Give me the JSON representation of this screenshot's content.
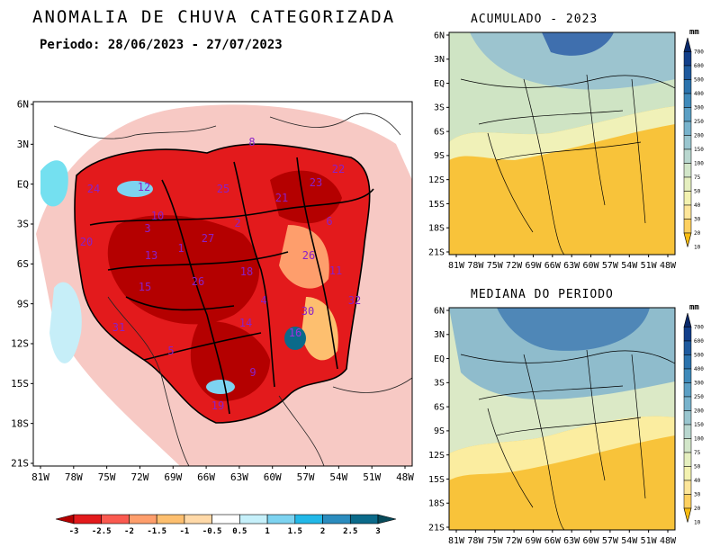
{
  "main": {
    "title": "ANOMALIA DE CHUVA CATEGORIZADA",
    "period": "Periodo: 28/06/2023 - 27/07/2023",
    "lat_labels": [
      "6N",
      "3N",
      "EQ",
      "3S",
      "6S",
      "9S",
      "12S",
      "15S",
      "18S",
      "21S"
    ],
    "lon_labels": [
      "81W",
      "78W",
      "75W",
      "72W",
      "69W",
      "66W",
      "63W",
      "60W",
      "57W",
      "54W",
      "51W",
      "48W"
    ],
    "colorbar_ticks": [
      "-3",
      "-2.5",
      "-2",
      "-1.5",
      "-1",
      "-0.5",
      "0.5",
      "1",
      "1.5",
      "2",
      "2.5",
      "3"
    ],
    "colorbar_colors": [
      "#b40000",
      "#e31a1c",
      "#fa5a50",
      "#fe9e6c",
      "#fdbf6f",
      "#ffd9a8",
      "#ffffff",
      "#c6f0fa",
      "#7dd3f0",
      "#22b8e8",
      "#2b8cbe",
      "#0b6a8a",
      "#084a5a"
    ],
    "basins": [
      {
        "id": "24"
      },
      {
        "id": "12"
      },
      {
        "id": "25"
      },
      {
        "id": "8"
      },
      {
        "id": "21"
      },
      {
        "id": "23"
      },
      {
        "id": "22"
      },
      {
        "id": "10"
      },
      {
        "id": "3"
      },
      {
        "id": "2"
      },
      {
        "id": "20"
      },
      {
        "id": "13"
      },
      {
        "id": "1"
      },
      {
        "id": "27"
      },
      {
        "id": "6"
      },
      {
        "id": "26"
      },
      {
        "id": "11"
      },
      {
        "id": "15"
      },
      {
        "id": "26"
      },
      {
        "id": "18"
      },
      {
        "id": "4"
      },
      {
        "id": "32"
      },
      {
        "id": "30"
      },
      {
        "id": "31"
      },
      {
        "id": "14"
      },
      {
        "id": "16"
      },
      {
        "id": "5"
      },
      {
        "id": "9"
      },
      {
        "id": "19"
      }
    ]
  },
  "acumulado": {
    "title": "ACUMULADO - 2023",
    "lat_labels": [
      "6N",
      "3N",
      "EQ",
      "3S",
      "6S",
      "9S",
      "12S",
      "15S",
      "18S",
      "21S"
    ],
    "lon_labels": [
      "81W",
      "78W",
      "75W",
      "72W",
      "69W",
      "66W",
      "63W",
      "60W",
      "57W",
      "54W",
      "51W",
      "48W"
    ]
  },
  "mediana": {
    "title": "MEDIANA DO PERIODO",
    "lat_labels": [
      "6N",
      "3N",
      "EQ",
      "3S",
      "6S",
      "9S",
      "12S",
      "15S",
      "18S",
      "21S"
    ],
    "lon_labels": [
      "81W",
      "78W",
      "75W",
      "72W",
      "69W",
      "66W",
      "63W",
      "60W",
      "57W",
      "54W",
      "51W",
      "48W"
    ]
  },
  "mm_colorbar": {
    "unit": "mm",
    "ticks": [
      "700",
      "600",
      "500",
      "400",
      "300",
      "250",
      "200",
      "150",
      "100",
      "75",
      "50",
      "40",
      "30",
      "20",
      "10"
    ],
    "colors": [
      "#0a2a6b",
      "#123f8a",
      "#1e5a9e",
      "#2b73ad",
      "#3f8aba",
      "#5b9fc4",
      "#78b3cc",
      "#9ac6cf",
      "#b9d7cf",
      "#d2e6c9",
      "#e5efbf",
      "#f3f2b0",
      "#fde69a",
      "#fdd060",
      "#f8bb10"
    ]
  }
}
